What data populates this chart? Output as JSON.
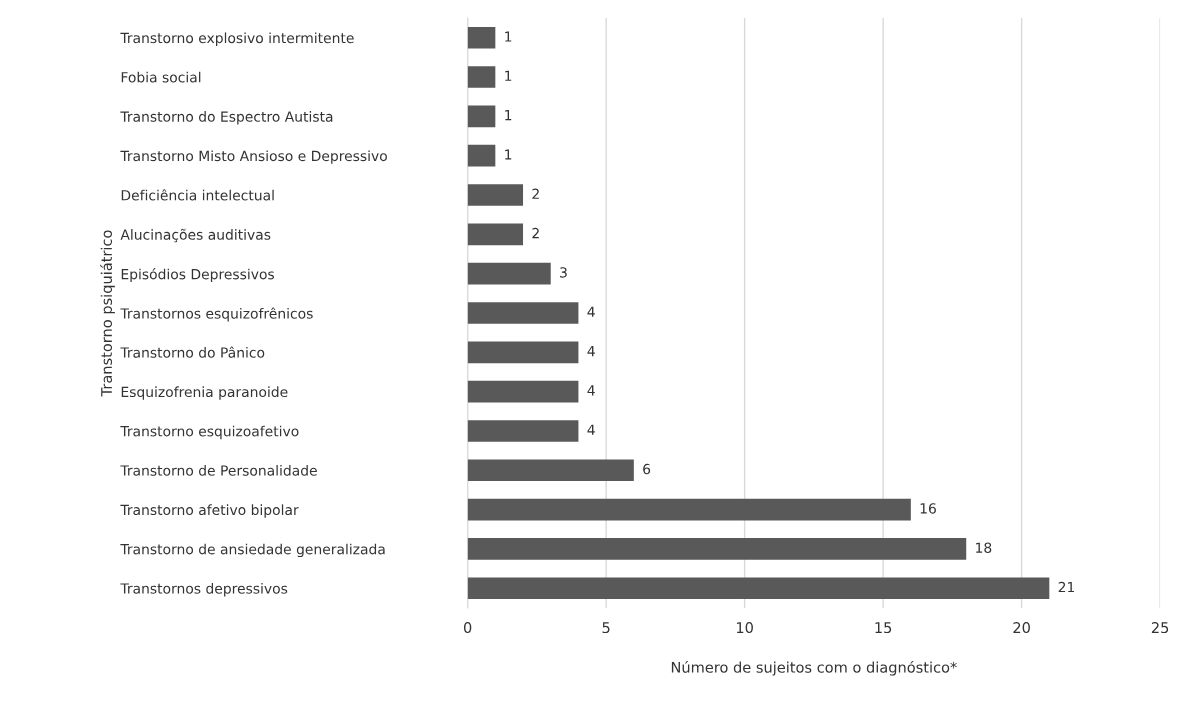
{
  "chart_data": {
    "type": "bar",
    "orientation": "horizontal",
    "xlabel": "Número de sujeitos com o diagnóstico*",
    "ylabel": "Transtorno psiquiátrico",
    "categories": [
      "Transtorno explosivo intermitente",
      "Fobia social",
      "Transtorno do Espectro Autista",
      "Transtorno Misto Ansioso e Depressivo",
      "Deficiência intelectual",
      "Alucinações auditivas",
      "Episódios Depressivos",
      "Transtornos esquizofrênicos",
      "Transtorno do Pânico",
      "Esquizofrenia paranoide",
      "Transtorno esquizoafetivo",
      "Transtorno de Personalidade",
      "Transtorno afetivo bipolar",
      "Transtorno de ansiedade generalizada",
      "Transtornos depressivos"
    ],
    "values": [
      1,
      1,
      1,
      1,
      2,
      2,
      3,
      4,
      4,
      4,
      4,
      6,
      16,
      18,
      21
    ],
    "color": "#595959",
    "xlim": [
      0,
      25
    ],
    "xticks": [
      0,
      5,
      10,
      15,
      20,
      25
    ],
    "grid": "x",
    "data_labels": true
  }
}
